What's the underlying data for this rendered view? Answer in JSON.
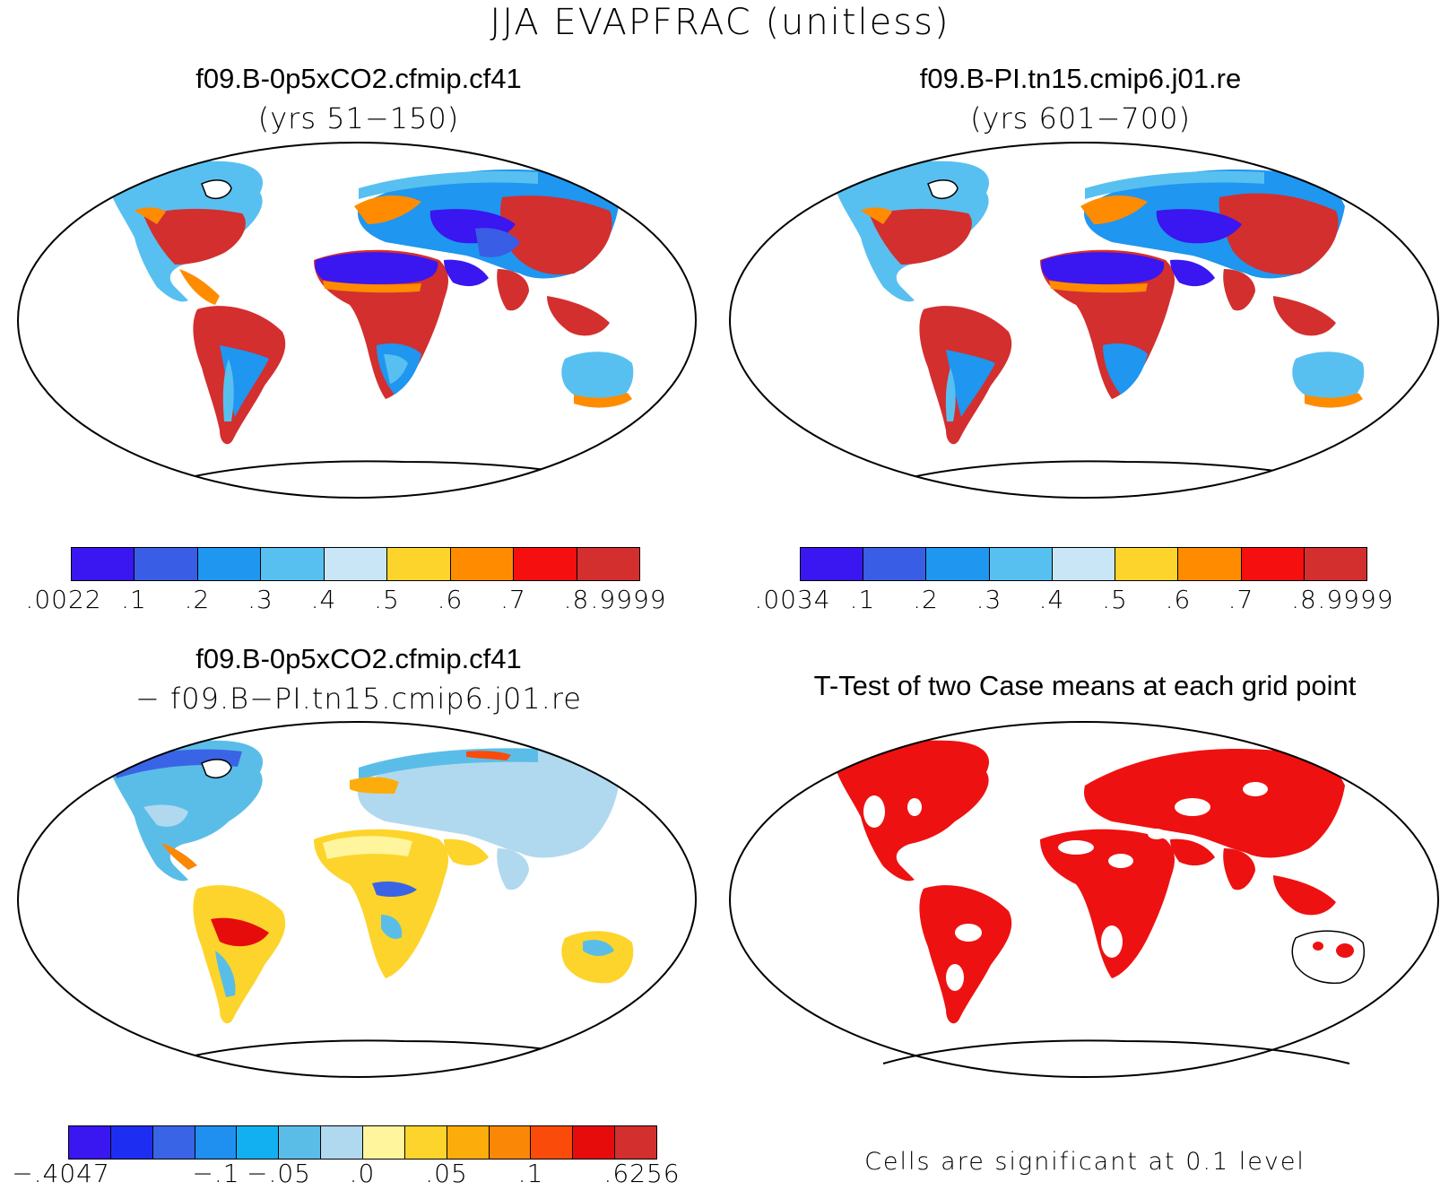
{
  "title": "JJA EVAPFRAC (unitless)",
  "panels": {
    "top_left": {
      "title": "f09.B-0p5xCO2.cfmip.cf41",
      "subtitle": "(yrs 51−150)",
      "colorbar": {
        "colors": [
          "#3a16f0",
          "#3a5de6",
          "#1f96f0",
          "#58c0f0",
          "#c8e6f5",
          "#fdd42b",
          "#ff8c00",
          "#f50f0f",
          "#d32f2f"
        ],
        "ticks": [
          ".0022",
          ".1",
          ".2",
          ".3",
          ".4",
          ".5",
          ".6",
          ".7",
          ".8",
          ".9999"
        ]
      }
    },
    "top_right": {
      "title": "f09.B-PI.tn15.cmip6.j01.re",
      "subtitle": "(yrs 601−700)",
      "colorbar": {
        "colors": [
          "#3a16f0",
          "#3a5de6",
          "#1f96f0",
          "#58c0f0",
          "#c8e6f5",
          "#fdd42b",
          "#ff8c00",
          "#f50f0f",
          "#d32f2f"
        ],
        "ticks": [
          ".0034",
          ".1",
          ".2",
          ".3",
          ".4",
          ".5",
          ".6",
          ".7",
          ".8",
          ".9999"
        ]
      }
    },
    "bottom_left": {
      "title": "f09.B-0p5xCO2.cfmip.cf41",
      "subtitle": "− f09.B−PI.tn15.cmip6.j01.re",
      "colorbar": {
        "colors": [
          "#3a16f0",
          "#1d2ef2",
          "#3a64e6",
          "#1f8ff0",
          "#12b0f0",
          "#5abde8",
          "#b0d9ef",
          "#fff59c",
          "#fdd42b",
          "#fcad0c",
          "#fb8706",
          "#fb4b0a",
          "#e60c0c",
          "#d32f2f"
        ],
        "ticks": [
          "−.4047",
          "−.1",
          "−.05",
          ".0",
          ".05",
          ".1",
          ".6256"
        ]
      }
    },
    "bottom_right": {
      "title": "T-Test of two Case means at each grid point",
      "note": "Cells are significant at 0.1 level",
      "significant_color": "#ee1111"
    }
  }
}
